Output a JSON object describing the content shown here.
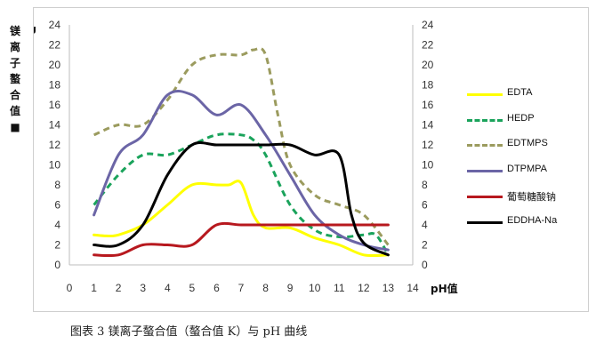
{
  "chart_data": {
    "type": "line",
    "x": [
      1,
      2,
      3,
      4,
      5,
      6,
      7,
      8,
      9,
      10,
      11,
      12,
      13
    ],
    "xlim": [
      0,
      14
    ],
    "xticks": [
      "0",
      "1",
      "2",
      "3",
      "4",
      "5",
      "6",
      "7",
      "8",
      "9",
      "10",
      "11",
      "12",
      "13",
      "14"
    ],
    "xlabel": "pH值",
    "ylim": [
      0,
      24
    ],
    "yticks": [
      "0",
      "2",
      "4",
      "6",
      "8",
      "10",
      "12",
      "14",
      "16",
      "18",
      "20",
      "22",
      "24"
    ],
    "ylabel_top": "Mg",
    "ylabel_chars": [
      "镁",
      "离",
      "子",
      "螯",
      "合",
      "值",
      "■"
    ],
    "grid": false,
    "legend_position": "right",
    "series": [
      {
        "name": "EDTA",
        "color": "#ffff00",
        "dash": "solid",
        "x": [
          1,
          1.5,
          2,
          3,
          4,
          5,
          6,
          6.5,
          7,
          7.5,
          8,
          9,
          10,
          11,
          12,
          13
        ],
        "values": [
          3,
          2.9,
          3,
          4,
          6,
          8,
          8,
          8,
          8.2,
          5,
          3.7,
          3.7,
          2.7,
          2,
          1,
          1
        ]
      },
      {
        "name": "HEDP",
        "color": "#1aa35b",
        "dash": "dashed",
        "x": [
          1,
          2,
          3,
          4,
          5,
          6,
          7,
          7.5,
          8,
          9,
          10,
          11,
          12,
          12.5,
          13
        ],
        "values": [
          6,
          9,
          11,
          11,
          12,
          13,
          13,
          12.5,
          11,
          6,
          3.5,
          2.8,
          3,
          3,
          1
        ]
      },
      {
        "name": "EDTMPS",
        "color": "#9b9b5e",
        "dash": "dashed",
        "x": [
          1,
          2,
          3,
          4,
          5,
          6,
          7,
          7.5,
          8,
          8.5,
          9,
          10,
          11,
          12,
          13
        ],
        "values": [
          13,
          14,
          14,
          16.5,
          20,
          21,
          21,
          21.5,
          21,
          15,
          10,
          7,
          6,
          5,
          2
        ]
      },
      {
        "name": "DTPMPA",
        "color": "#6b65a6",
        "dash": "solid",
        "x": [
          1,
          2,
          3,
          4,
          5,
          6,
          7,
          8,
          9,
          10,
          11,
          12,
          13
        ],
        "values": [
          5,
          11,
          13,
          17,
          17,
          15,
          16,
          13,
          9,
          5,
          3,
          2,
          1.5
        ]
      },
      {
        "name": "葡萄糖酸钠",
        "color": "#b7181e",
        "dash": "solid",
        "x": [
          1,
          2,
          3,
          4,
          5,
          6,
          7,
          8,
          9,
          10,
          11,
          12,
          13
        ],
        "values": [
          1,
          1,
          2,
          2,
          2,
          4,
          4,
          4,
          4,
          4,
          4,
          4,
          4
        ]
      },
      {
        "name": "EDDHA-Na",
        "color": "#000000",
        "dash": "solid",
        "x": [
          1,
          2,
          3,
          4,
          5,
          6,
          7,
          8,
          9,
          10,
          11,
          11.5,
          12,
          13
        ],
        "values": [
          2,
          2,
          4,
          9,
          12,
          12,
          12,
          12,
          12,
          11,
          11,
          5,
          2.2,
          1
        ]
      }
    ]
  },
  "caption": "图表 3 镁离子螯合值（螯合值 K）与 pH 曲线"
}
